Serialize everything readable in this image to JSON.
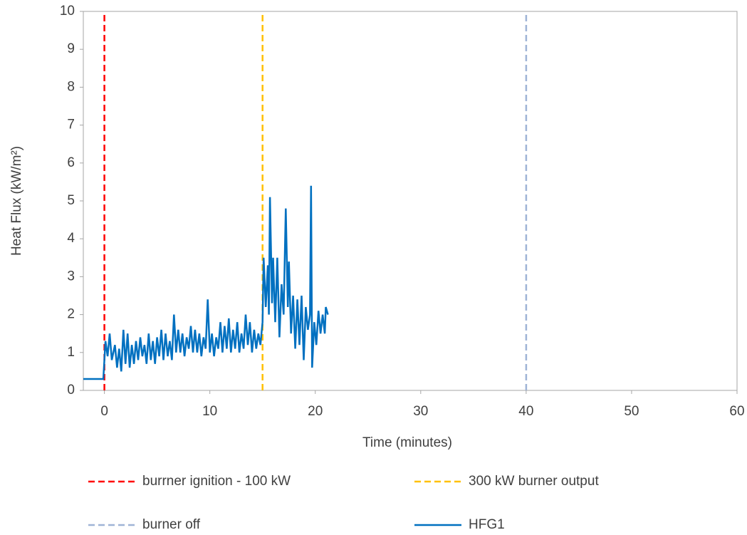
{
  "chart_data": {
    "type": "line",
    "x_label": "Time (minutes)",
    "y_label": "Heat Flux (kW/m²)",
    "xlim": [
      -2,
      60
    ],
    "xticks": [
      0,
      10,
      20,
      30,
      40,
      50,
      60
    ],
    "ylim": [
      0,
      10
    ],
    "yticks": [
      0,
      1,
      2,
      3,
      4,
      5,
      6,
      7,
      8,
      9,
      10
    ],
    "legend": "bottom",
    "series": [
      {
        "name": "burrner ignition - 100 kW",
        "color": "#ff0000",
        "style": "dashed",
        "x": [
          0,
          0
        ],
        "values": [
          0,
          10
        ]
      },
      {
        "name": "300 kW burner output",
        "color": "#ffc000",
        "style": "dashed",
        "x": [
          15,
          15
        ],
        "values": [
          0,
          10
        ]
      },
      {
        "name": "burner off",
        "color": "#9fb4d6",
        "style": "dashed",
        "x": [
          40,
          40
        ],
        "values": [
          0,
          10
        ]
      },
      {
        "name": "HFG1",
        "color": "#0070c0",
        "style": "solid",
        "x": [
          -2,
          -1,
          -0.1,
          0,
          0.1,
          0.3,
          0.5,
          0.7,
          1,
          1.2,
          1.4,
          1.6,
          1.8,
          2,
          2.2,
          2.4,
          2.6,
          2.8,
          3,
          3.2,
          3.4,
          3.6,
          3.8,
          4,
          4.2,
          4.4,
          4.6,
          4.8,
          5,
          5.2,
          5.4,
          5.6,
          5.8,
          6,
          6.2,
          6.4,
          6.6,
          6.8,
          7,
          7.2,
          7.4,
          7.6,
          7.8,
          8,
          8.2,
          8.4,
          8.6,
          8.8,
          9,
          9.2,
          9.4,
          9.6,
          9.8,
          10,
          10.2,
          10.4,
          10.6,
          10.8,
          11,
          11.2,
          11.4,
          11.6,
          11.8,
          12,
          12.2,
          12.4,
          12.6,
          12.8,
          13,
          13.2,
          13.4,
          13.6,
          13.8,
          14,
          14.2,
          14.4,
          14.6,
          14.8,
          15,
          15.1,
          15.3,
          15.5,
          15.6,
          15.7,
          15.9,
          16,
          16.2,
          16.4,
          16.6,
          16.8,
          17,
          17.2,
          17.4,
          17.5,
          17.7,
          17.9,
          18.1,
          18.3,
          18.5,
          18.7,
          18.9,
          19.1,
          19.3,
          19.5,
          19.6,
          19.7,
          19.9,
          20.1,
          20.3,
          20.5,
          20.7,
          20.9,
          21,
          21.2
        ],
        "values": [
          0.3,
          0.3,
          0.3,
          0.8,
          1.3,
          0.9,
          1.5,
          0.8,
          1.2,
          0.6,
          1.1,
          0.5,
          1.6,
          0.7,
          1.5,
          0.6,
          1.2,
          0.7,
          1.3,
          0.8,
          1.4,
          0.9,
          1.2,
          0.7,
          1.5,
          0.8,
          1.3,
          0.7,
          1.4,
          0.9,
          1.6,
          0.8,
          1.5,
          0.9,
          1.3,
          0.8,
          2.0,
          1.0,
          1.6,
          1.0,
          1.5,
          0.9,
          1.4,
          1.1,
          1.7,
          1.0,
          1.6,
          1.0,
          1.5,
          0.9,
          1.4,
          1.1,
          2.4,
          1.0,
          1.5,
          0.9,
          1.4,
          1.1,
          1.8,
          1.0,
          1.7,
          1.1,
          1.9,
          1.0,
          1.6,
          1.1,
          1.8,
          1.0,
          1.5,
          1.1,
          2.0,
          1.2,
          1.8,
          1.0,
          1.6,
          1.1,
          1.5,
          1.2,
          1.8,
          3.5,
          2.2,
          3.3,
          2.0,
          5.1,
          2.3,
          3.5,
          1.8,
          3.5,
          1.4,
          2.8,
          2.0,
          4.8,
          2.2,
          3.4,
          1.5,
          2.5,
          1.1,
          2.4,
          1.2,
          2.5,
          0.8,
          2.2,
          1.6,
          2.0,
          5.4,
          0.6,
          1.8,
          1.2,
          2.1,
          1.5,
          2.0,
          1.5,
          2.2,
          2.0
        ]
      }
    ]
  }
}
